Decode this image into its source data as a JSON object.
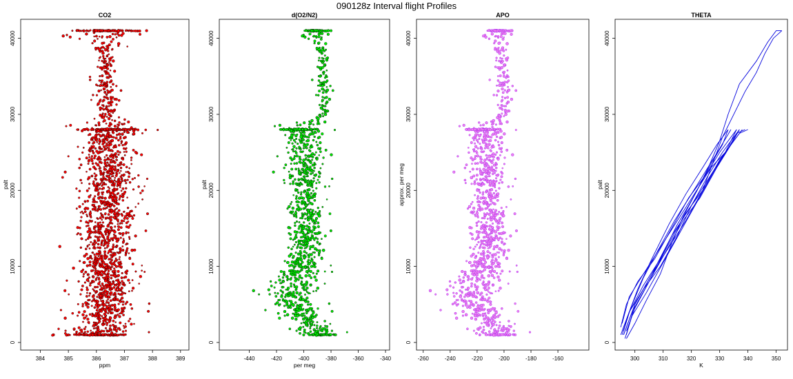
{
  "figure": {
    "title": "090128z   Interval flight Profiles"
  },
  "chart_data": [
    {
      "type": "scatter",
      "title": "CO2",
      "xlabel": "ppm",
      "ylabel": "palt",
      "xlim": [
        383.3,
        389.3
      ],
      "ylim": [
        -1000,
        42500
      ],
      "xticks": [
        384,
        385,
        386,
        387,
        388,
        389
      ],
      "yticks": [
        0,
        10000,
        20000,
        30000,
        40000
      ],
      "series": [
        {
          "color": "#ff0000",
          "edge": "#000000",
          "bands": [
            [
              1000,
              384.3,
              388.1
            ],
            [
              4000,
              384.6,
              388.0
            ],
            [
              8000,
              384.8,
              387.9
            ],
            [
              12000,
              384.7,
              388.0
            ],
            [
              16000,
              384.6,
              388.2
            ],
            [
              20000,
              384.7,
              388.1
            ],
            [
              24000,
              384.9,
              387.9
            ],
            [
              27000,
              385.0,
              387.7
            ],
            [
              28000,
              384.7,
              388.3
            ],
            [
              30000,
              385.6,
              387.1
            ],
            [
              34000,
              385.7,
              387.0
            ],
            [
              38000,
              385.8,
              386.9
            ],
            [
              41000,
              384.3,
              388.4
            ]
          ],
          "values": [
            [
              386.1,
              1000
            ],
            [
              386.3,
              28000
            ],
            [
              386.2,
              41000
            ],
            [
              386.5,
              18000
            ],
            [
              385.9,
              8000
            ],
            [
              386.4,
              36000
            ]
          ]
        }
      ]
    },
    {
      "type": "scatter",
      "title": "d(O2/N2)",
      "xlabel": "per meg",
      "ylabel": "palt",
      "xlim": [
        -462,
        -337
      ],
      "ylim": [
        -1000,
        42500
      ],
      "xticks": [
        -440,
        -420,
        -400,
        -380,
        -360,
        -340
      ],
      "yticks": [
        0,
        10000,
        20000,
        30000,
        40000
      ],
      "series": [
        {
          "color": "#00ee00",
          "edge": "#000000",
          "bands": [
            [
              500,
              -405,
              -360
            ],
            [
              2000,
              -415,
              -370
            ],
            [
              5000,
              -435,
              -380
            ],
            [
              7000,
              -440,
              -378
            ],
            [
              10000,
              -425,
              -375
            ],
            [
              14000,
              -420,
              -375
            ],
            [
              18000,
              -420,
              -377
            ],
            [
              21000,
              -425,
              -376
            ],
            [
              25000,
              -420,
              -376
            ],
            [
              28000,
              -430,
              -376
            ],
            [
              30000,
              -392,
              -378
            ],
            [
              35000,
              -395,
              -376
            ],
            [
              38000,
              -393,
              -377
            ],
            [
              41000,
              -405,
              -378
            ]
          ],
          "values": [
            [
              -395,
              5000
            ],
            [
              -400,
              15000
            ],
            [
              -388,
              35000
            ],
            [
              -410,
              22000
            ],
            [
              -380,
              41000
            ]
          ]
        }
      ]
    },
    {
      "type": "scatter",
      "title": "APO",
      "xlabel": "",
      "ylabel": "approx. per meg",
      "xlim": [
        -265,
        -137
      ],
      "ylim": [
        -1000,
        42500
      ],
      "xticks": [
        -260,
        -240,
        -220,
        -200,
        -180,
        -160
      ],
      "yticks": [
        0,
        10000,
        20000,
        30000,
        40000
      ],
      "series": [
        {
          "color": "#ee82ee",
          "edge": "#a020f0",
          "bands": [
            [
              500,
              -225,
              -175
            ],
            [
              2000,
              -232,
              -180
            ],
            [
              5000,
              -255,
              -190
            ],
            [
              7000,
              -258,
              -190
            ],
            [
              10000,
              -240,
              -185
            ],
            [
              14000,
              -235,
              -185
            ],
            [
              18000,
              -236,
              -188
            ],
            [
              21000,
              -240,
              -188
            ],
            [
              25000,
              -235,
              -190
            ],
            [
              28000,
              -240,
              -190
            ],
            [
              30000,
              -210,
              -190
            ],
            [
              35000,
              -212,
              -188
            ],
            [
              38000,
              -212,
              -190
            ],
            [
              41000,
              -218,
              -190
            ]
          ],
          "values": [
            [
              -210,
              5000
            ],
            [
              -215,
              15000
            ],
            [
              -200,
              35000
            ],
            [
              -220,
              22000
            ],
            [
              -195,
              41000
            ]
          ]
        }
      ]
    },
    {
      "type": "line",
      "title": "THETA",
      "xlabel": "K",
      "ylabel": "palt",
      "xlim": [
        293,
        354
      ],
      "ylim": [
        -1000,
        42500
      ],
      "xticks": [
        300,
        310,
        320,
        330,
        340,
        350
      ],
      "yticks": [
        0,
        10000,
        20000,
        30000,
        40000
      ],
      "series": [
        {
          "name": "",
          "color": "#0000dd",
          "points": [
            [
              295.5,
              1000
            ],
            [
              298,
              4000
            ],
            [
              303,
              7000
            ],
            [
              309,
              10000
            ],
            [
              315,
              14000
            ],
            [
              320,
              18000
            ],
            [
              326,
              22000
            ],
            [
              331,
              25000
            ],
            [
              335,
              27000
            ],
            [
              337,
              28000
            ]
          ]
        },
        {
          "name": "",
          "color": "#0000dd",
          "points": [
            [
              296.5,
              500
            ],
            [
              299,
              3500
            ],
            [
              304,
              6500
            ],
            [
              310,
              10500
            ],
            [
              316,
              14500
            ],
            [
              322,
              18500
            ],
            [
              328,
              22500
            ],
            [
              333,
              25500
            ],
            [
              336,
              27500
            ],
            [
              339,
              28000
            ]
          ]
        },
        {
          "name": "",
          "color": "#0000dd",
          "points": [
            [
              295,
              2000
            ],
            [
              297,
              5000
            ],
            [
              301,
              8000
            ],
            [
              307,
              11000
            ],
            [
              313,
              15000
            ],
            [
              319,
              19000
            ],
            [
              325,
              22000
            ],
            [
              330,
              25000
            ],
            [
              334,
              27000
            ],
            [
              336,
              28000
            ]
          ]
        },
        {
          "name": "",
          "color": "#0000dd",
          "points": [
            [
              297,
              1500
            ],
            [
              300,
              4500
            ],
            [
              305,
              8000
            ],
            [
              311,
              12000
            ],
            [
              317,
              16000
            ],
            [
              323,
              19000
            ],
            [
              329,
              23000
            ],
            [
              334,
              26000
            ],
            [
              337,
              28000
            ]
          ]
        },
        {
          "name": "",
          "color": "#0000dd",
          "points": [
            [
              296,
              1000
            ],
            [
              299,
              4000
            ],
            [
              305,
              8000
            ],
            [
              312,
              13000
            ],
            [
              318,
              17000
            ],
            [
              324,
              20000
            ],
            [
              330,
              24000
            ],
            [
              335,
              26500
            ],
            [
              338,
              28000
            ]
          ]
        },
        {
          "name": "",
          "color": "#0000dd",
          "points": [
            [
              295.5,
              2500
            ],
            [
              298,
              6000
            ],
            [
              303,
              9000
            ],
            [
              309,
              12500
            ],
            [
              315,
              16000
            ],
            [
              321,
              19500
            ],
            [
              327,
              23000
            ],
            [
              332,
              25000
            ],
            [
              336,
              28000
            ]
          ]
        },
        {
          "name": "",
          "color": "#0000dd",
          "points": [
            [
              296,
              1000
            ],
            [
              300,
              5000
            ],
            [
              306,
              9000
            ],
            [
              313,
              14000
            ],
            [
              320,
              18000
            ],
            [
              326,
              21500
            ],
            [
              332,
              25000
            ],
            [
              337,
              27500
            ],
            [
              340,
              28000
            ]
          ]
        },
        {
          "name": "",
          "color": "#0000dd",
          "points": [
            [
              297,
              500
            ],
            [
              300,
              2500
            ],
            [
              304,
              5500
            ],
            [
              309,
              9000
            ],
            [
              313,
              13000
            ],
            [
              317,
              16500
            ],
            [
              322,
              20000
            ],
            [
              327,
              23500
            ],
            [
              331,
              26000
            ],
            [
              333,
              28000
            ]
          ]
        },
        {
          "name": "",
          "color": "#0000dd",
          "points": [
            [
              295,
              1000
            ],
            [
              297,
              3000
            ],
            [
              301,
              7000
            ],
            [
              306,
              11000
            ],
            [
              312,
              15500
            ],
            [
              318,
              19500
            ],
            [
              324,
              23000
            ],
            [
              329,
              26000
            ],
            [
              333,
              28000
            ]
          ]
        },
        {
          "name": "",
          "color": "#0000dd",
          "points": [
            [
              296,
              1500
            ],
            [
              298.5,
              4500
            ],
            [
              303,
              8500
            ],
            [
              308,
              12000
            ],
            [
              314,
              16000
            ],
            [
              320,
              19500
            ],
            [
              325,
              22500
            ],
            [
              330,
              25500
            ],
            [
              334,
              28000
            ]
          ]
        },
        {
          "name": "",
          "color": "#0000dd",
          "points": [
            [
              295.5,
              1500
            ],
            [
              298,
              4000
            ],
            [
              303,
              7500
            ],
            [
              309,
              11000
            ],
            [
              315,
              15500
            ],
            [
              319,
              18000
            ],
            [
              322,
              20000
            ],
            [
              326,
              23000
            ],
            [
              330,
              26500
            ],
            [
              333,
              30000
            ],
            [
              337,
              34000
            ],
            [
              343,
              37000
            ],
            [
              347,
              39500
            ],
            [
              350,
              41000
            ],
            [
              352,
              41000
            ]
          ]
        },
        {
          "name": "",
          "color": "#0000dd",
          "points": [
            [
              297,
              1000
            ],
            [
              300,
              5000
            ],
            [
              306,
              9000
            ],
            [
              312,
              12500
            ],
            [
              318,
              16000
            ],
            [
              324,
              20000
            ],
            [
              328,
              24000
            ],
            [
              331,
              27000
            ],
            [
              335,
              30000
            ],
            [
              339,
              33000
            ],
            [
              343,
              35500
            ],
            [
              346,
              38000
            ],
            [
              349,
              40000
            ],
            [
              352,
              41000
            ]
          ]
        }
      ]
    }
  ]
}
